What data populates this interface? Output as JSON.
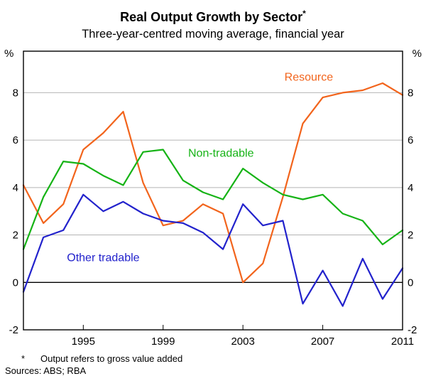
{
  "header": {
    "title": "Real Output Growth by Sector",
    "title_marker": "*",
    "subtitle": "Three-year-centred moving average, financial year"
  },
  "footnotes": {
    "marker": "*",
    "note": "Output refers to gross value added",
    "sources": "Sources: ABS; RBA"
  },
  "chart_data": {
    "type": "line",
    "title": "Real Output Growth by Sector",
    "subtitle": "Three-year-centred moving average, financial year",
    "unit_left": "%",
    "unit_right": "%",
    "grid": true,
    "zero_line": true,
    "xlim": [
      1992,
      2011
    ],
    "ylim": [
      -2,
      9.75
    ],
    "xticks": [
      1995,
      1999,
      2003,
      2007,
      2011
    ],
    "yticks": [
      -2,
      0,
      2,
      4,
      6,
      8
    ],
    "colors": {
      "grid": "#b4b4b4",
      "axis": "#000000"
    },
    "x": [
      1992,
      1993,
      1994,
      1995,
      1996,
      1997,
      1998,
      1999,
      2000,
      2001,
      2002,
      2003,
      2004,
      2005,
      2006,
      2007,
      2008,
      2009,
      2010,
      2011
    ],
    "series": [
      {
        "name": "Resource",
        "color": "#f2641c",
        "label": {
          "x": 2006.3,
          "y": 8.5,
          "anchor": "middle"
        },
        "values": [
          4.1,
          2.5,
          3.3,
          5.6,
          6.3,
          7.2,
          4.2,
          2.4,
          2.6,
          3.3,
          2.9,
          0.0,
          0.8,
          3.6,
          6.7,
          7.8,
          8.0,
          8.1,
          8.4,
          7.9
        ]
      },
      {
        "name": "Non-tradable",
        "color": "#16b316",
        "label": {
          "x": 2001.9,
          "y": 5.3,
          "anchor": "middle"
        },
        "values": [
          1.4,
          3.6,
          5.1,
          5.0,
          4.5,
          4.1,
          5.5,
          5.6,
          4.3,
          3.8,
          3.5,
          4.8,
          4.2,
          3.7,
          3.5,
          3.7,
          2.9,
          2.6,
          1.6,
          2.2
        ]
      },
      {
        "name": "Other tradable",
        "color": "#2222cc",
        "label": {
          "x": 1996.0,
          "y": 0.9,
          "anchor": "middle"
        },
        "values": [
          -0.4,
          1.9,
          2.2,
          3.7,
          3.0,
          3.4,
          2.9,
          2.6,
          2.5,
          2.1,
          1.4,
          3.3,
          2.4,
          2.6,
          -0.9,
          0.5,
          -1.0,
          1.0,
          -0.7,
          0.6
        ]
      }
    ]
  }
}
